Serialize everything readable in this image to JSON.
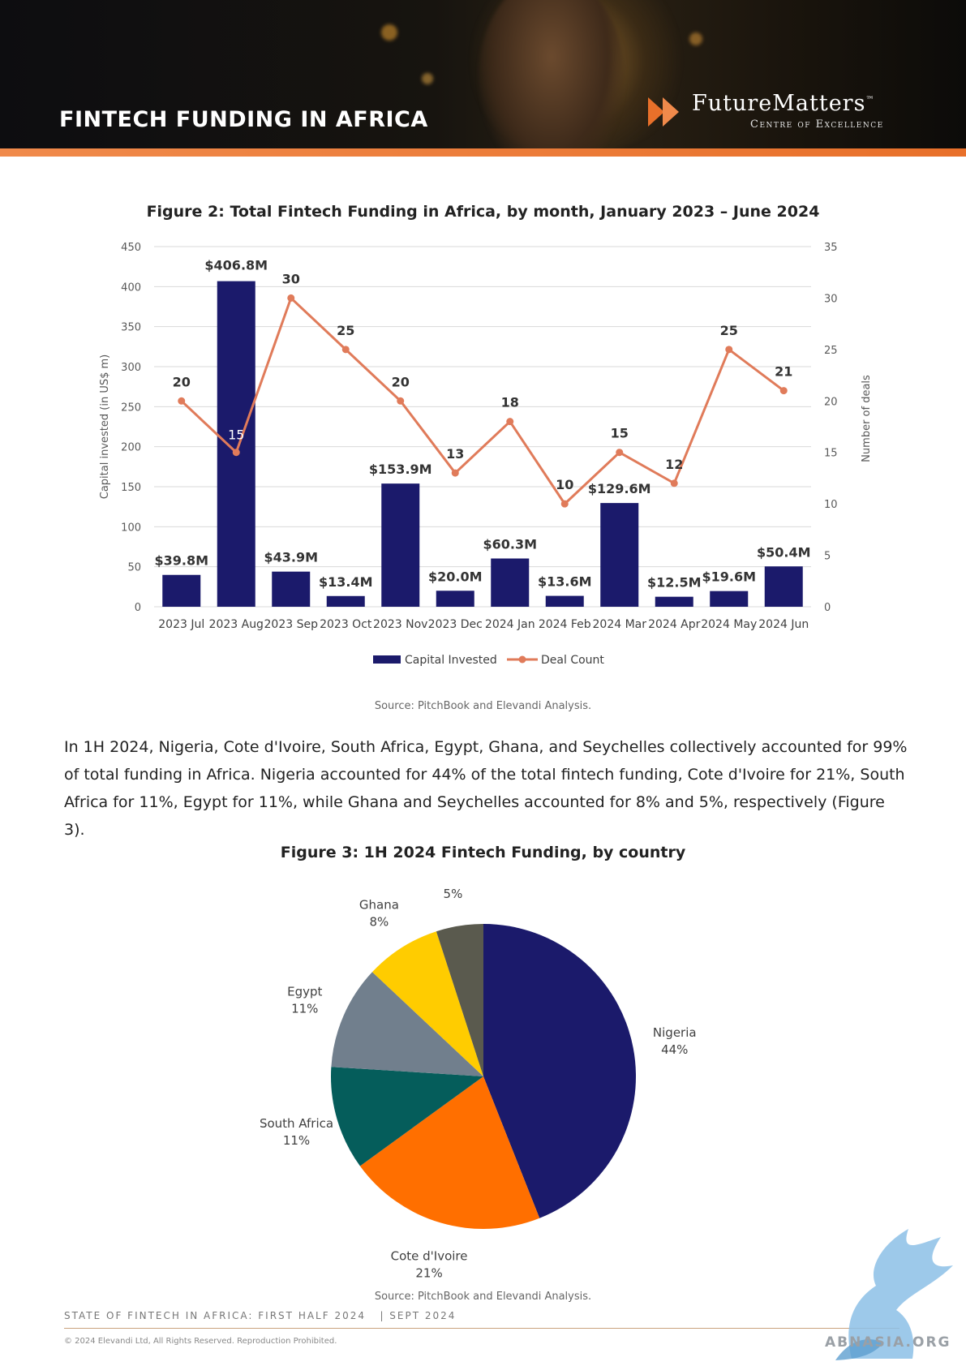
{
  "header": {
    "title": "FINTECH FUNDING IN AFRICA",
    "brand_name": "FutureMatters",
    "brand_tm": "™",
    "brand_sub": "Centre of Excellence"
  },
  "figure2": {
    "title": "Figure 2: Total Fintech Funding in Africa, by month, January 2023 – June 2024",
    "source": "Source: PitchBook and Elevandi Analysis."
  },
  "paragraph": "In 1H 2024, Nigeria, Cote d'Ivoire, South Africa, Egypt, Ghana, and Seychelles collectively accounted for 99% of total funding in Africa. Nigeria accounted for 44% of the total fintech funding, Cote d'Ivoire for 21%, South Africa for 11%, Egypt for 11%, while Ghana and Seychelles accounted for 8% and 5%, respectively (Figure 3).",
  "figure3": {
    "title": "Figure 3: 1H 2024 Fintech Funding, by country",
    "source": "Source: PitchBook and Elevandi Analysis."
  },
  "footer": {
    "report": "STATE OF FINTECH IN AFRICA: FIRST HALF 2024   | SEPT 2024",
    "copyright": "© 2024 Elevandi Ltd, All Rights Reserved. Reproduction Prohibited.",
    "watermark": "ABNASIA.ORG"
  },
  "chart_data": [
    {
      "type": "bar",
      "title": "Figure 2: Total Fintech Funding in Africa, by month, January 2023 – June 2024",
      "categories": [
        "2023 Jul",
        "2023 Aug",
        "2023 Sep",
        "2023 Oct",
        "2023 Nov",
        "2023 Dec",
        "2024 Jan",
        "2024 Feb",
        "2024 Mar",
        "2024 Apr",
        "2024 May",
        "2024 Jun"
      ],
      "series": [
        {
          "name": "Capital Invested",
          "type": "bar",
          "axis": "left",
          "values": [
            39.8,
            406.8,
            43.9,
            13.4,
            153.9,
            20.0,
            60.3,
            13.6,
            129.6,
            12.5,
            19.6,
            50.4
          ],
          "labels": [
            "$39.8M",
            "$406.8M",
            "$43.9M",
            "$13.4M",
            "$153.9M",
            "$20.0M",
            "$60.3M",
            "$13.6M",
            "$129.6M",
            "$12.5M",
            "$19.6M",
            "$50.4M"
          ],
          "color": "#1b1a6b"
        },
        {
          "name": "Deal Count",
          "type": "line",
          "axis": "right",
          "values": [
            20,
            15,
            30,
            25,
            20,
            13,
            18,
            10,
            15,
            12,
            25,
            21
          ],
          "color": "#e07b5a"
        }
      ],
      "ylabel": "Capital invested (in US$ m)",
      "y2label": "Number of deals",
      "ylim": [
        0,
        450
      ],
      "y2lim": [
        0,
        35
      ],
      "yticks": [
        "0",
        "50",
        "100",
        "150",
        "200",
        "250",
        "300",
        "350",
        "400",
        "450"
      ],
      "y2ticks": [
        "0",
        "5",
        "10",
        "15",
        "20",
        "25",
        "30",
        "35"
      ],
      "grid": true,
      "legend": "bottom"
    },
    {
      "type": "pie",
      "title": "Figure 3: 1H 2024 Fintech Funding, by country",
      "slices": [
        {
          "label": "Nigeria",
          "value": 44,
          "text": "44%",
          "color": "#1b1a6b"
        },
        {
          "label": "Cote d'Ivoire",
          "value": 21,
          "text": "21%",
          "color": "#ff6f00"
        },
        {
          "label": "South Africa",
          "value": 11,
          "text": "11%",
          "color": "#055d5b"
        },
        {
          "label": "Egypt",
          "value": 11,
          "text": "11%",
          "color": "#717f8d"
        },
        {
          "label": "Ghana",
          "value": 8,
          "text": "8%",
          "color": "#ffcc00"
        },
        {
          "label": "Seychelles",
          "value": 5,
          "text": "5%",
          "color": "#5a5a4e"
        }
      ]
    }
  ]
}
